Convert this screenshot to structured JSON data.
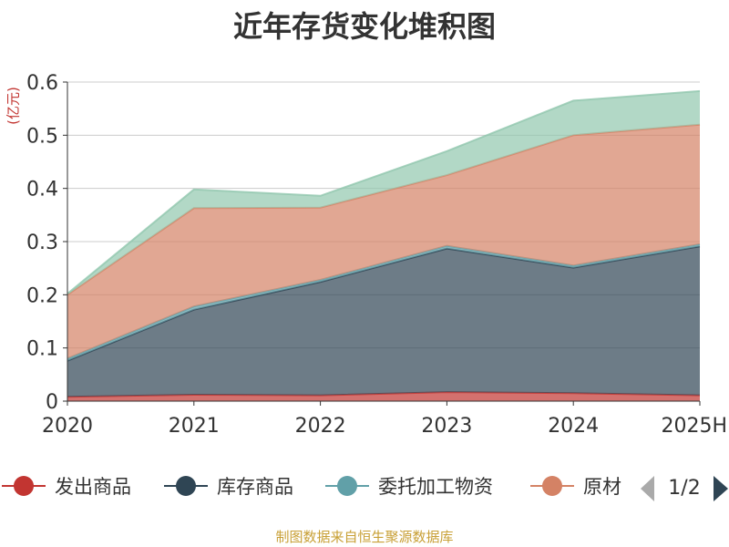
{
  "title": "近年存货变化堆积图",
  "unit_label": "(亿元)",
  "source": "制图数据来自恒生聚源数据库",
  "legend": {
    "page_indicator": "1/2",
    "visible_items": [
      "发出商品",
      "库存商品",
      "委托加工物资",
      "原材"
    ]
  },
  "chart_data": {
    "type": "area",
    "stacked": true,
    "x": [
      "2020",
      "2021",
      "2022",
      "2023",
      "2024",
      "2025H"
    ],
    "ylim": [
      0,
      0.6
    ],
    "yticks": [
      0,
      0.1,
      0.2,
      0.3,
      0.4,
      0.5,
      0.6
    ],
    "ytick_labels": [
      "0",
      "0.1",
      "0.2",
      "0.3",
      "0.4",
      "0.5",
      "0.6"
    ],
    "grid": true,
    "legend_position": "bottom",
    "series": [
      {
        "name": "发出商品",
        "color": "#c23531",
        "values": [
          0.008,
          0.012,
          0.011,
          0.017,
          0.015,
          0.011
        ]
      },
      {
        "name": "库存商品",
        "color": "#2f4554",
        "values": [
          0.068,
          0.16,
          0.213,
          0.27,
          0.236,
          0.28
        ]
      },
      {
        "name": "委托加工物资",
        "color": "#61a0a8",
        "values": [
          0.004,
          0.006,
          0.004,
          0.005,
          0.004,
          0.004
        ]
      },
      {
        "name": "原材料",
        "color": "#d48265",
        "values": [
          0.12,
          0.185,
          0.136,
          0.133,
          0.245,
          0.225
        ]
      },
      {
        "color": "#91c7ae",
        "values": [
          0.002,
          0.035,
          0.022,
          0.045,
          0.065,
          0.063
        ]
      }
    ]
  }
}
